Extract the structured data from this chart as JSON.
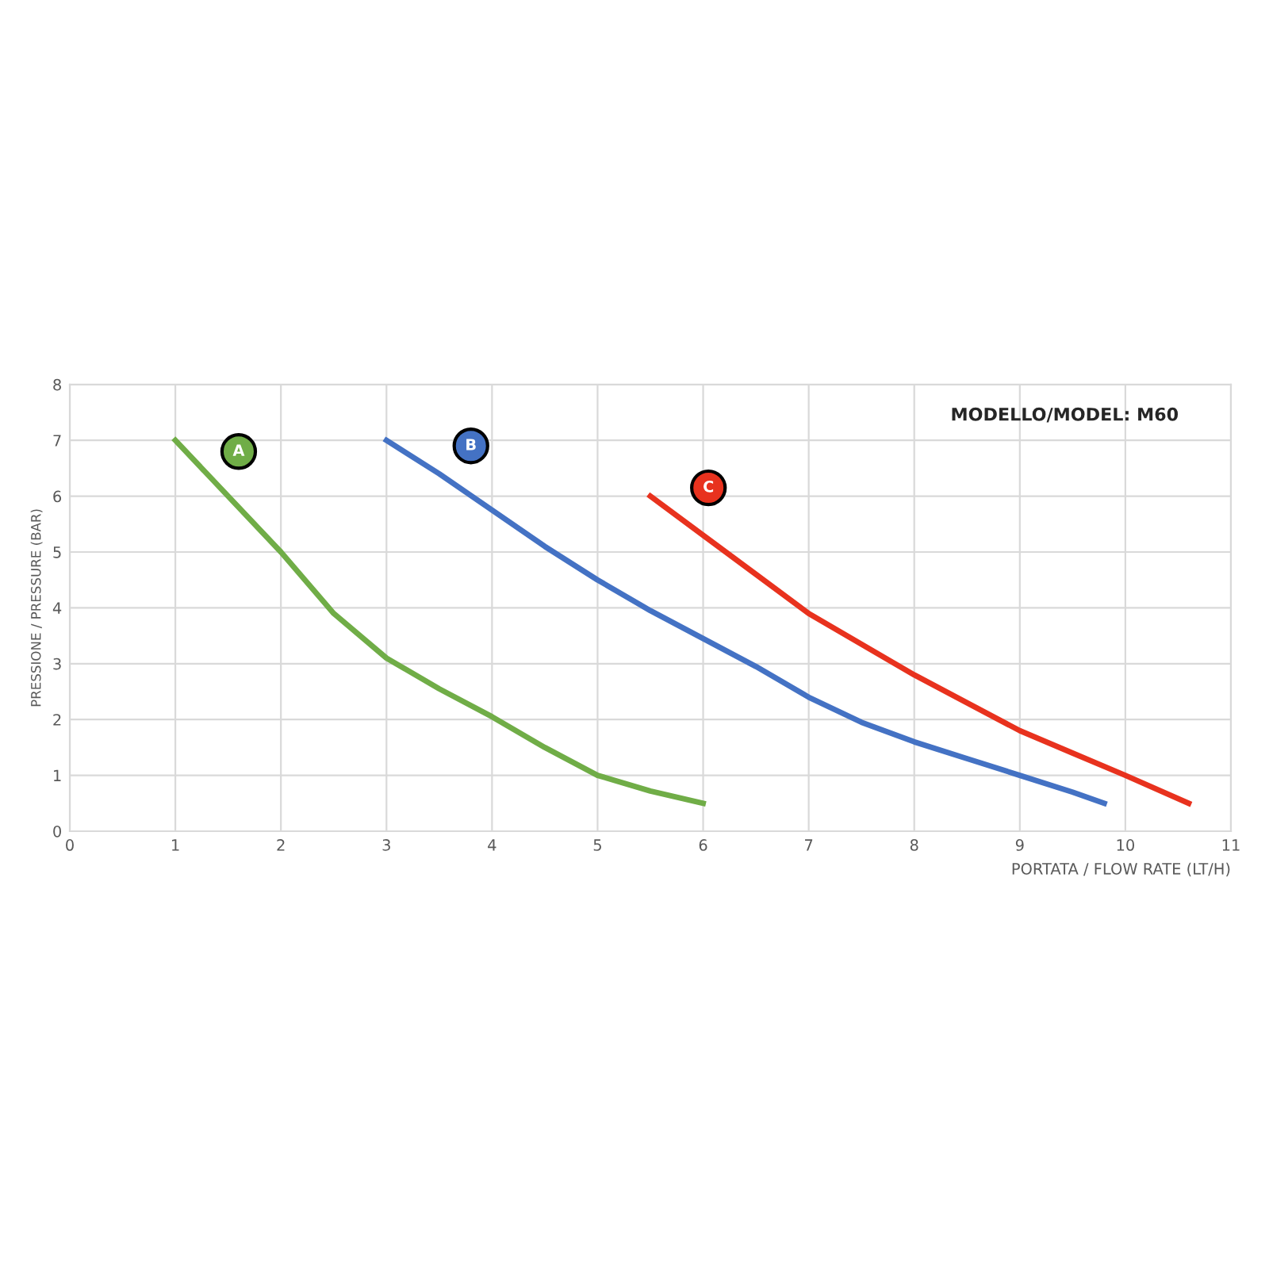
{
  "chart_data": {
    "type": "line",
    "xlabel": "PORTATA / FLOW RATE (LT/H)",
    "ylabel": "PRESSIONE / PRESSURE (BAR)",
    "annotations": [
      "MODELLO/MODEL: M60"
    ],
    "series": [
      {
        "name": "A",
        "color": "#70ad47",
        "x": [
          1,
          1.5,
          2,
          2.5,
          3,
          3.5,
          4,
          4.5,
          5,
          5.5,
          6
        ],
        "values": [
          7,
          6,
          5,
          3.9,
          3.1,
          2.55,
          2.05,
          1.5,
          1.0,
          0.72,
          0.5
        ]
      },
      {
        "name": "B",
        "color": "#4472c4",
        "x": [
          3,
          3.5,
          4,
          4.5,
          5,
          5.5,
          6,
          6.5,
          7,
          7.5,
          8,
          8.5,
          9,
          9.5,
          9.8
        ],
        "values": [
          7,
          6.4,
          5.75,
          5.1,
          4.5,
          3.95,
          3.45,
          2.95,
          2.4,
          1.95,
          1.6,
          1.3,
          1.0,
          0.7,
          0.5
        ]
      },
      {
        "name": "C",
        "color": "#e8321e",
        "x": [
          5.5,
          6,
          6.5,
          7,
          7.5,
          8,
          8.5,
          9,
          9.5,
          10,
          10.6
        ],
        "values": [
          6,
          5.3,
          4.6,
          3.9,
          3.35,
          2.8,
          2.3,
          1.8,
          1.4,
          1.0,
          0.5
        ]
      }
    ],
    "xlim": [
      0,
      11
    ],
    "xticks": [
      0,
      1,
      2,
      3,
      4,
      5,
      6,
      7,
      8,
      9,
      10,
      11
    ],
    "ylim": [
      0,
      8
    ],
    "yticks": [
      0,
      1,
      2,
      3,
      4,
      5,
      6,
      7,
      8
    ],
    "grid": true,
    "legend": false,
    "marker": "none",
    "line_style": "solid"
  }
}
